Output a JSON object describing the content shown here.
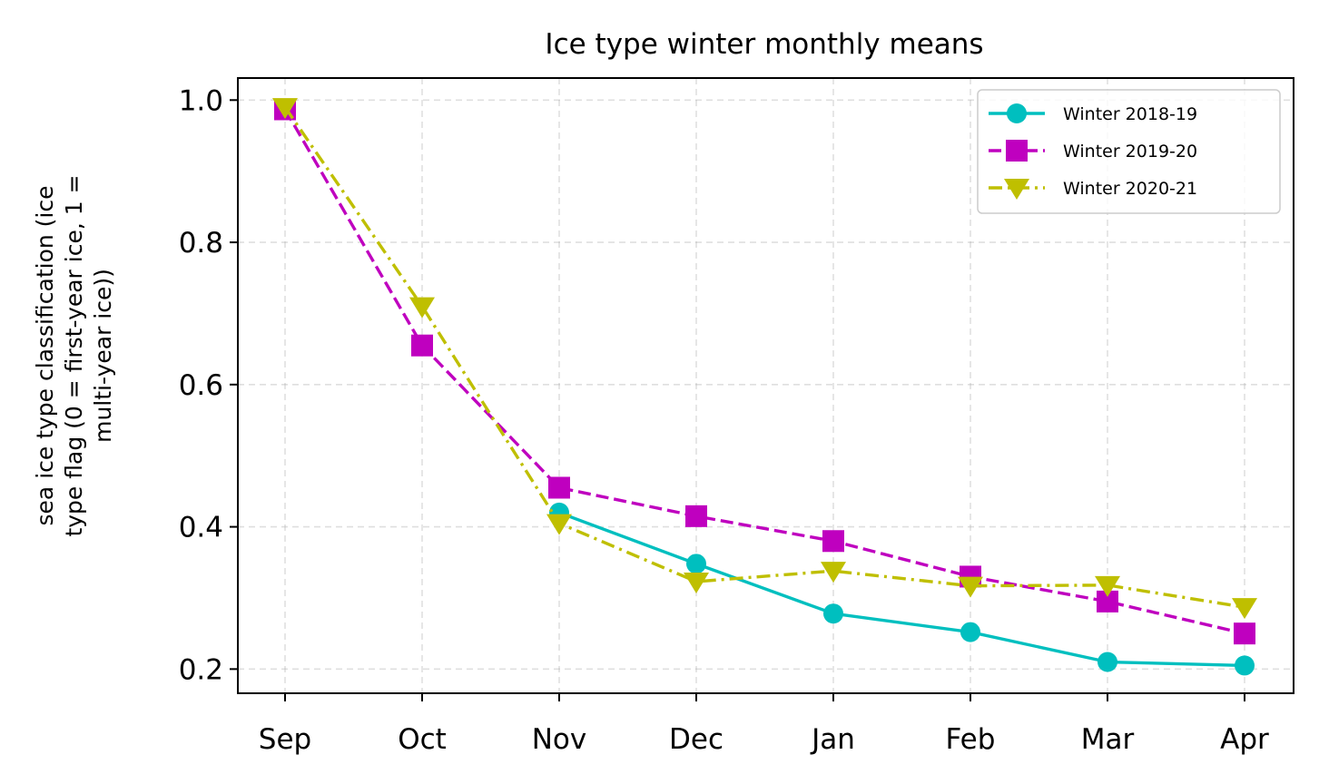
{
  "chart_data": {
    "type": "line",
    "title": "Ice type winter monthly means",
    "xlabel": "",
    "ylabel": "sea ice type classification (ice type flag (0 = first-year ice, 1 = multi-year ice))",
    "ylabel_lines": [
      "sea ice type classification (ice",
      "type flag (0 = first-year ice, 1 =",
      "multi-year ice))"
    ],
    "categories": [
      "Sep",
      "Oct",
      "Nov",
      "Dec",
      "Jan",
      "Feb",
      "Mar",
      "Apr"
    ],
    "ylim": [
      0.166,
      1.031
    ],
    "yticks": [
      0.2,
      0.4,
      0.6,
      0.8,
      1.0
    ],
    "ytick_labels": [
      "0.2",
      "0.4",
      "0.6",
      "0.8",
      "1.0"
    ],
    "grid": true,
    "legend_position": "top-right",
    "series": [
      {
        "name": "Winter 2018-19",
        "color": "#00bfbf",
        "marker": "circle",
        "line_style": "solid",
        "values": [
          null,
          null,
          0.42,
          0.348,
          0.278,
          0.252,
          0.21,
          0.205
        ]
      },
      {
        "name": "Winter 2019-20",
        "color": "#bf00bf",
        "marker": "square",
        "line_style": "dashed",
        "values": [
          0.987,
          0.655,
          0.455,
          0.415,
          0.38,
          0.33,
          0.295,
          0.25
        ]
      },
      {
        "name": "Winter 2020-21",
        "color": "#bfbf00",
        "marker": "triangle-down",
        "line_style": "dashdot",
        "values": [
          0.99,
          0.71,
          0.405,
          0.323,
          0.338,
          0.317,
          0.318,
          0.287
        ]
      }
    ]
  }
}
